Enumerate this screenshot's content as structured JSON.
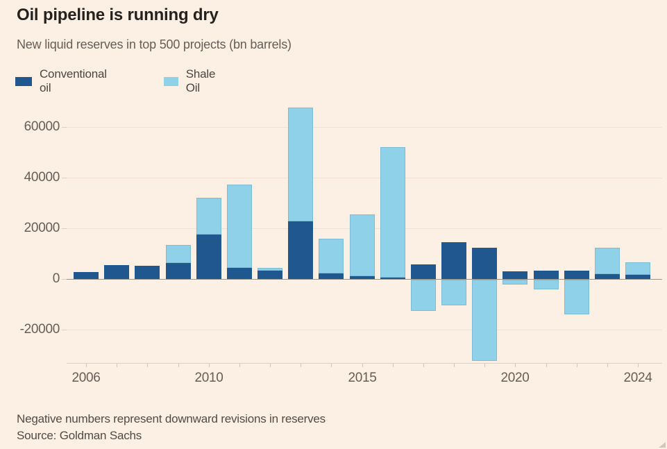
{
  "header": {
    "title": "Oil pipeline is running dry",
    "subtitle": "New liquid reserves in top 500 projects (bn barrels)"
  },
  "legend": {
    "items": [
      {
        "label": "Conventional oil",
        "color": "#20578f"
      },
      {
        "label": "Shale Oil",
        "color": "#8fd1e8"
      }
    ]
  },
  "footer": {
    "note": "Negative numbers represent downward revisions in reserves",
    "source": "Source: Goldman Sachs"
  },
  "colors": {
    "background": "#fcefe3",
    "grid": "#f2e1d2",
    "zero_line": "#9b948c",
    "axis_line": "#d9d0c5",
    "text_muted": "#655e57"
  },
  "chart_data": {
    "type": "bar",
    "stacked": true,
    "title": "Oil pipeline is running dry",
    "subtitle": "New liquid reserves in top 500 projects (bn barrels)",
    "xlabel": "",
    "ylabel": "",
    "categories": [
      "2006",
      "2007",
      "2008",
      "2009",
      "2010",
      "2011",
      "2012",
      "2013",
      "2014",
      "2015",
      "2016",
      "2017",
      "2018",
      "2019",
      "2020",
      "2021",
      "2022",
      "2023",
      "2024"
    ],
    "series": [
      {
        "name": "Conventional oil",
        "color": "#20578f",
        "values": [
          2800,
          5500,
          5300,
          6300,
          17500,
          4500,
          3300,
          22700,
          2200,
          1000,
          500,
          5800,
          14500,
          12200,
          3100,
          3300,
          3300,
          1800,
          1700
        ]
      },
      {
        "name": "Shale Oil",
        "color": "#8fd1e8",
        "values": [
          0,
          0,
          0,
          7100,
          14600,
          32900,
          1200,
          45000,
          13800,
          24400,
          51500,
          -12200,
          -10100,
          -32000,
          -1900,
          -3800,
          -13800,
          10500,
          4900
        ]
      }
    ],
    "ylim": [
      -33150,
      69550
    ],
    "yticks": [
      60000,
      40000,
      20000,
      0,
      -20000
    ],
    "xticks_labeled": [
      "2006",
      "2010",
      "2015",
      "2020",
      "2024"
    ],
    "grid": "horizontal-faint",
    "legend_position": "top-left",
    "annotation": "Negative numbers represent downward revisions in reserves"
  }
}
